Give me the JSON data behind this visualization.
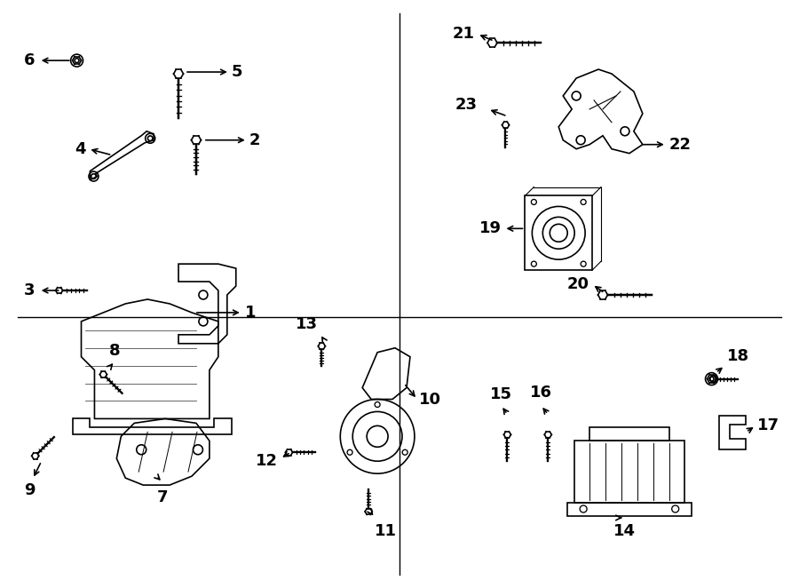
{
  "bg_color": "#ffffff",
  "line_color": "#000000",
  "label_fontsize": 13,
  "label_fontweight": "bold"
}
